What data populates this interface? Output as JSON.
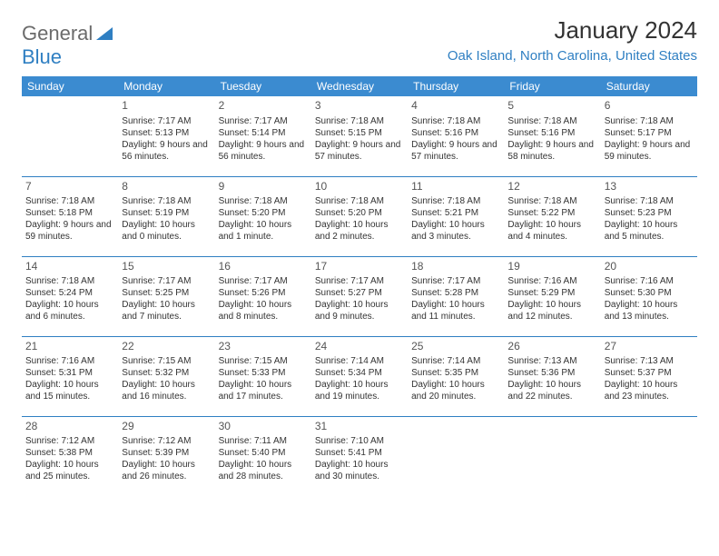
{
  "brand": {
    "part1": "General",
    "part2": "Blue"
  },
  "title": "January 2024",
  "location": "Oak Island, North Carolina, United States",
  "colors": {
    "header_bg": "#3b8bd0",
    "accent": "#2f7fc2",
    "text": "#333333",
    "logo_gray": "#6b6b6b"
  },
  "weekdays": [
    "Sunday",
    "Monday",
    "Tuesday",
    "Wednesday",
    "Thursday",
    "Friday",
    "Saturday"
  ],
  "weeks": [
    [
      null,
      {
        "d": "1",
        "sr": "Sunrise: 7:17 AM",
        "ss": "Sunset: 5:13 PM",
        "dl": "Daylight: 9 hours and 56 minutes."
      },
      {
        "d": "2",
        "sr": "Sunrise: 7:17 AM",
        "ss": "Sunset: 5:14 PM",
        "dl": "Daylight: 9 hours and 56 minutes."
      },
      {
        "d": "3",
        "sr": "Sunrise: 7:18 AM",
        "ss": "Sunset: 5:15 PM",
        "dl": "Daylight: 9 hours and 57 minutes."
      },
      {
        "d": "4",
        "sr": "Sunrise: 7:18 AM",
        "ss": "Sunset: 5:16 PM",
        "dl": "Daylight: 9 hours and 57 minutes."
      },
      {
        "d": "5",
        "sr": "Sunrise: 7:18 AM",
        "ss": "Sunset: 5:16 PM",
        "dl": "Daylight: 9 hours and 58 minutes."
      },
      {
        "d": "6",
        "sr": "Sunrise: 7:18 AM",
        "ss": "Sunset: 5:17 PM",
        "dl": "Daylight: 9 hours and 59 minutes."
      }
    ],
    [
      {
        "d": "7",
        "sr": "Sunrise: 7:18 AM",
        "ss": "Sunset: 5:18 PM",
        "dl": "Daylight: 9 hours and 59 minutes."
      },
      {
        "d": "8",
        "sr": "Sunrise: 7:18 AM",
        "ss": "Sunset: 5:19 PM",
        "dl": "Daylight: 10 hours and 0 minutes."
      },
      {
        "d": "9",
        "sr": "Sunrise: 7:18 AM",
        "ss": "Sunset: 5:20 PM",
        "dl": "Daylight: 10 hours and 1 minute."
      },
      {
        "d": "10",
        "sr": "Sunrise: 7:18 AM",
        "ss": "Sunset: 5:20 PM",
        "dl": "Daylight: 10 hours and 2 minutes."
      },
      {
        "d": "11",
        "sr": "Sunrise: 7:18 AM",
        "ss": "Sunset: 5:21 PM",
        "dl": "Daylight: 10 hours and 3 minutes."
      },
      {
        "d": "12",
        "sr": "Sunrise: 7:18 AM",
        "ss": "Sunset: 5:22 PM",
        "dl": "Daylight: 10 hours and 4 minutes."
      },
      {
        "d": "13",
        "sr": "Sunrise: 7:18 AM",
        "ss": "Sunset: 5:23 PM",
        "dl": "Daylight: 10 hours and 5 minutes."
      }
    ],
    [
      {
        "d": "14",
        "sr": "Sunrise: 7:18 AM",
        "ss": "Sunset: 5:24 PM",
        "dl": "Daylight: 10 hours and 6 minutes."
      },
      {
        "d": "15",
        "sr": "Sunrise: 7:17 AM",
        "ss": "Sunset: 5:25 PM",
        "dl": "Daylight: 10 hours and 7 minutes."
      },
      {
        "d": "16",
        "sr": "Sunrise: 7:17 AM",
        "ss": "Sunset: 5:26 PM",
        "dl": "Daylight: 10 hours and 8 minutes."
      },
      {
        "d": "17",
        "sr": "Sunrise: 7:17 AM",
        "ss": "Sunset: 5:27 PM",
        "dl": "Daylight: 10 hours and 9 minutes."
      },
      {
        "d": "18",
        "sr": "Sunrise: 7:17 AM",
        "ss": "Sunset: 5:28 PM",
        "dl": "Daylight: 10 hours and 11 minutes."
      },
      {
        "d": "19",
        "sr": "Sunrise: 7:16 AM",
        "ss": "Sunset: 5:29 PM",
        "dl": "Daylight: 10 hours and 12 minutes."
      },
      {
        "d": "20",
        "sr": "Sunrise: 7:16 AM",
        "ss": "Sunset: 5:30 PM",
        "dl": "Daylight: 10 hours and 13 minutes."
      }
    ],
    [
      {
        "d": "21",
        "sr": "Sunrise: 7:16 AM",
        "ss": "Sunset: 5:31 PM",
        "dl": "Daylight: 10 hours and 15 minutes."
      },
      {
        "d": "22",
        "sr": "Sunrise: 7:15 AM",
        "ss": "Sunset: 5:32 PM",
        "dl": "Daylight: 10 hours and 16 minutes."
      },
      {
        "d": "23",
        "sr": "Sunrise: 7:15 AM",
        "ss": "Sunset: 5:33 PM",
        "dl": "Daylight: 10 hours and 17 minutes."
      },
      {
        "d": "24",
        "sr": "Sunrise: 7:14 AM",
        "ss": "Sunset: 5:34 PM",
        "dl": "Daylight: 10 hours and 19 minutes."
      },
      {
        "d": "25",
        "sr": "Sunrise: 7:14 AM",
        "ss": "Sunset: 5:35 PM",
        "dl": "Daylight: 10 hours and 20 minutes."
      },
      {
        "d": "26",
        "sr": "Sunrise: 7:13 AM",
        "ss": "Sunset: 5:36 PM",
        "dl": "Daylight: 10 hours and 22 minutes."
      },
      {
        "d": "27",
        "sr": "Sunrise: 7:13 AM",
        "ss": "Sunset: 5:37 PM",
        "dl": "Daylight: 10 hours and 23 minutes."
      }
    ],
    [
      {
        "d": "28",
        "sr": "Sunrise: 7:12 AM",
        "ss": "Sunset: 5:38 PM",
        "dl": "Daylight: 10 hours and 25 minutes."
      },
      {
        "d": "29",
        "sr": "Sunrise: 7:12 AM",
        "ss": "Sunset: 5:39 PM",
        "dl": "Daylight: 10 hours and 26 minutes."
      },
      {
        "d": "30",
        "sr": "Sunrise: 7:11 AM",
        "ss": "Sunset: 5:40 PM",
        "dl": "Daylight: 10 hours and 28 minutes."
      },
      {
        "d": "31",
        "sr": "Sunrise: 7:10 AM",
        "ss": "Sunset: 5:41 PM",
        "dl": "Daylight: 10 hours and 30 minutes."
      },
      null,
      null,
      null
    ]
  ]
}
